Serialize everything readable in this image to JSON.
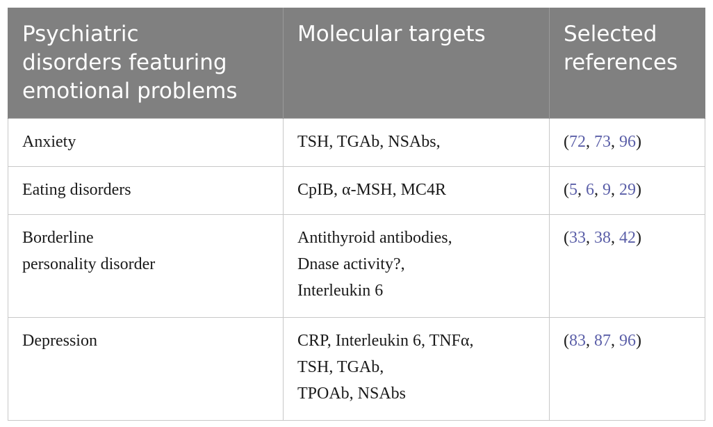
{
  "table": {
    "headers": [
      [
        "Psychiatric",
        "disorders featuring",
        "emotional problems"
      ],
      [
        "Molecular targets"
      ],
      [
        "Selected",
        "references"
      ]
    ],
    "rows": [
      {
        "disorder": [
          "Anxiety"
        ],
        "targets": [
          "TSH, TGAb, NSAbs,"
        ],
        "refs": [
          "72",
          "73",
          "96"
        ]
      },
      {
        "disorder": [
          "Eating disorders"
        ],
        "targets": [
          "CpIB, α-MSH, MC4R"
        ],
        "refs": [
          "5",
          "6",
          "9",
          "29"
        ]
      },
      {
        "disorder": [
          "Borderline",
          "personality disorder"
        ],
        "targets": [
          "Antithyroid antibodies,",
          "Dnase activity?,",
          "Interleukin 6"
        ],
        "refs": [
          "33",
          "38",
          "42"
        ]
      },
      {
        "disorder": [
          "Depression"
        ],
        "targets": [
          "CRP, Interleukin 6, TNFα,",
          "TSH, TGAb,",
          "TPOAb, NSAbs"
        ],
        "refs": [
          "83",
          "87",
          "96"
        ]
      }
    ],
    "colors": {
      "header_bg": "#808080",
      "header_text": "#ffffff",
      "ref_link": "#5b5fa8",
      "border": "#c8c8c8"
    }
  }
}
